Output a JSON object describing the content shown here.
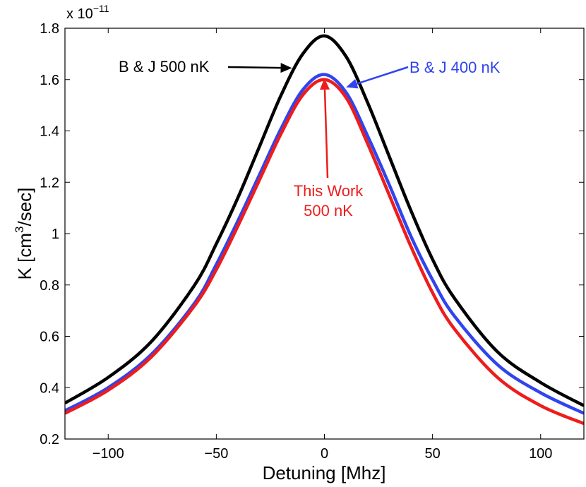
{
  "chart_data": {
    "type": "line",
    "xlabel": "Detuning [Mhz]",
    "ylabel_main": "K [cm",
    "ylabel_sup": "3",
    "ylabel_end": "/sec]",
    "xlim": [
      -120,
      120
    ],
    "ylim": [
      0.2,
      1.8
    ],
    "xticks": [
      -100,
      -50,
      0,
      50,
      100
    ],
    "xtick_labels": [
      "−100",
      "−50",
      "0",
      "50",
      "100"
    ],
    "yticks": [
      0.2,
      0.4,
      0.6,
      0.8,
      1,
      1.2,
      1.4,
      1.6,
      1.8
    ],
    "ytick_labels": [
      "0.2",
      "0.4",
      "0.6",
      "0.8",
      "1",
      "1.2",
      "1.4",
      "1.6",
      "1.8"
    ],
    "exponent_base": "x 10",
    "exponent_power": "−11",
    "grid": false,
    "x": [
      -120,
      -100,
      -80,
      -60,
      -50,
      -40,
      -30,
      -20,
      -10,
      0,
      10,
      20,
      30,
      40,
      50,
      60,
      80,
      100,
      120
    ],
    "series": [
      {
        "name": "B & J 500 nK",
        "color": "#000000",
        "values": [
          0.34,
          0.44,
          0.58,
          0.8,
          0.96,
          1.14,
          1.34,
          1.54,
          1.7,
          1.77,
          1.69,
          1.51,
          1.3,
          1.09,
          0.9,
          0.75,
          0.54,
          0.42,
          0.33
        ]
      },
      {
        "name": "B & J 400 nK",
        "color": "#3044ee",
        "values": [
          0.31,
          0.4,
          0.53,
          0.73,
          0.88,
          1.05,
          1.23,
          1.41,
          1.56,
          1.62,
          1.55,
          1.38,
          1.19,
          0.99,
          0.82,
          0.68,
          0.49,
          0.38,
          0.3
        ]
      },
      {
        "name": "This Work 500 nK",
        "color": "#ee1c1c",
        "values": [
          0.3,
          0.39,
          0.52,
          0.72,
          0.86,
          1.03,
          1.21,
          1.39,
          1.54,
          1.6,
          1.53,
          1.35,
          1.15,
          0.95,
          0.77,
          0.63,
          0.44,
          0.33,
          0.26
        ]
      }
    ],
    "annotations": [
      {
        "series": 0,
        "lines": [
          "B & J 500 nK"
        ],
        "color": "#000000",
        "arrow_to": [
          -15,
          1.645
        ]
      },
      {
        "series": 1,
        "lines": [
          "B & J 400 nK"
        ],
        "color": "#3044ee",
        "arrow_to": [
          10,
          1.57
        ]
      },
      {
        "series": 2,
        "lines": [
          "This Work",
          "500 nK"
        ],
        "color": "#ee1c1c",
        "arrow_to": [
          0,
          1.605
        ]
      }
    ]
  }
}
